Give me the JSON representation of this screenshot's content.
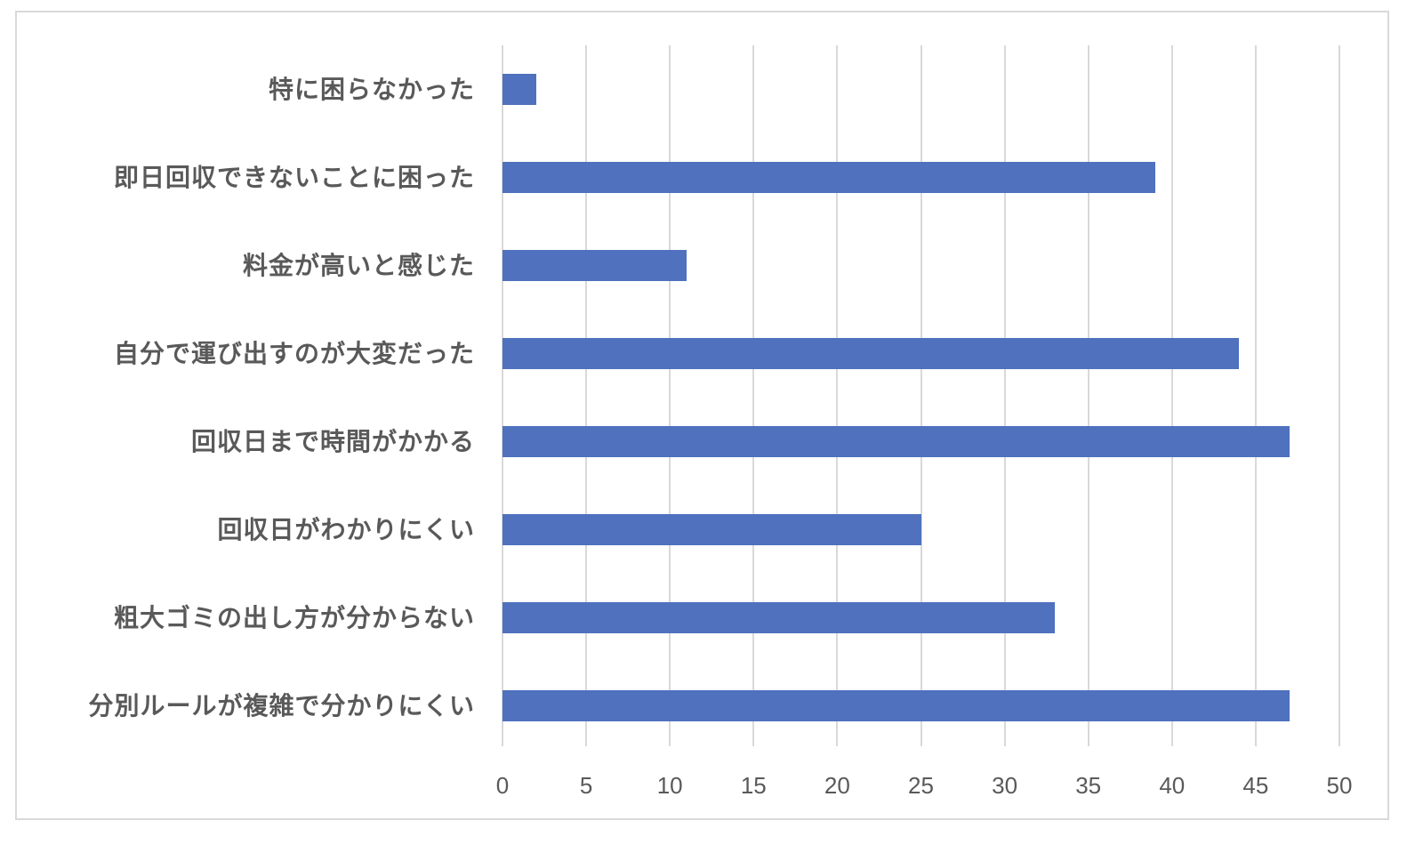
{
  "chart_data": {
    "type": "bar",
    "orientation": "horizontal",
    "title": "",
    "xlabel": "",
    "ylabel": "",
    "categories": [
      "特に困らなかった",
      "即日回収できないことに困った",
      "料金が高いと感じた",
      "自分で運び出すのが大変だった",
      "回収日まで時間がかかる",
      "回収日がわかりにくい",
      "粗大ゴミの出し方が分からない",
      "分別ルールが複雑で分かりにくい"
    ],
    "values": [
      2,
      39,
      11,
      44,
      47,
      25,
      33,
      47
    ],
    "xlim": [
      0,
      50
    ],
    "x_ticks": [
      "0",
      "5",
      "10",
      "15",
      "20",
      "25",
      "30",
      "35",
      "40",
      "45",
      "50"
    ],
    "grid": "vertical",
    "legend": "none",
    "bar_color": "#4f71be"
  }
}
